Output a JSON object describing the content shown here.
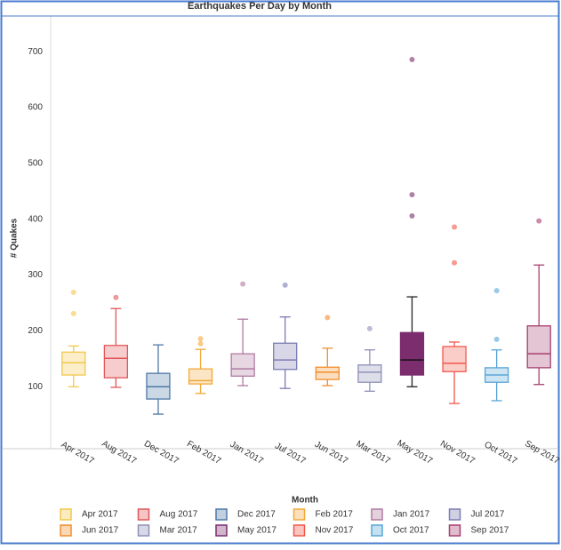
{
  "chart_data": {
    "type": "box",
    "title": "Earthquakes Per Day by Month",
    "y_label": "# Quakes",
    "x_label": "Month",
    "ylim": [
      -11,
      764
    ],
    "yticks": [
      100,
      200,
      300,
      400,
      500,
      600,
      700
    ],
    "grid": false,
    "highlighted": "May 2017",
    "categories": [
      "Apr 2017",
      "Aug 2017",
      "Dec 2017",
      "Feb 2017",
      "Jan 2017",
      "Jul 2017",
      "Jun 2017",
      "Mar 2017",
      "May 2017",
      "Nov 2017",
      "Oct 2017",
      "Sep 2017"
    ],
    "series": [
      {
        "name": "Apr 2017",
        "color": "#f1c84b",
        "whisker_low": 100,
        "q1": 121,
        "median": 143,
        "q3": 162,
        "whisker_high": 173,
        "outliers": [
          269,
          231
        ]
      },
      {
        "name": "Aug 2017",
        "color": "#e15759",
        "whisker_low": 99,
        "q1": 116,
        "median": 151,
        "q3": 174,
        "whisker_high": 240,
        "outliers": [
          260
        ]
      },
      {
        "name": "Dec 2017",
        "color": "#4e79a7",
        "whisker_low": 51,
        "q1": 78,
        "median": 100,
        "q3": 124,
        "whisker_high": 175,
        "outliers": []
      },
      {
        "name": "Feb 2017",
        "color": "#f2a93b",
        "whisker_low": 88,
        "q1": 105,
        "median": 111,
        "q3": 132,
        "whisker_high": 167,
        "outliers": [
          186,
          177
        ]
      },
      {
        "name": "Jan 2017",
        "color": "#b07aa1",
        "whisker_low": 102,
        "q1": 119,
        "median": 132,
        "q3": 159,
        "whisker_high": 221,
        "outliers": [
          284
        ]
      },
      {
        "name": "Jul 2017",
        "color": "#7c7bb3",
        "whisker_low": 97,
        "q1": 131,
        "median": 148,
        "q3": 178,
        "whisker_high": 225,
        "outliers": [
          282
        ]
      },
      {
        "name": "Jun 2017",
        "color": "#f28e2b",
        "whisker_low": 102,
        "q1": 113,
        "median": 126,
        "q3": 135,
        "whisker_high": 169,
        "outliers": [
          224
        ]
      },
      {
        "name": "Mar 2017",
        "color": "#8f91b8",
        "whisker_low": 92,
        "q1": 108,
        "median": 126,
        "q3": 139,
        "whisker_high": 166,
        "outliers": [
          204
        ]
      },
      {
        "name": "May 2017",
        "color": "#7b2d6e",
        "whisker_low": 100,
        "q1": 121,
        "median": 148,
        "q3": 197,
        "whisker_high": 261,
        "outliers": [
          686,
          444,
          406
        ]
      },
      {
        "name": "Nov 2017",
        "color": "#f1584a",
        "whisker_low": 70,
        "q1": 127,
        "median": 142,
        "q3": 172,
        "whisker_high": 180,
        "outliers": [
          386,
          322
        ]
      },
      {
        "name": "Oct 2017",
        "color": "#59a5d8",
        "whisker_low": 75,
        "q1": 108,
        "median": 121,
        "q3": 134,
        "whisker_high": 166,
        "outliers": [
          272,
          185
        ]
      },
      {
        "name": "Sep 2017",
        "color": "#a63f6f",
        "whisker_low": 104,
        "q1": 134,
        "median": 159,
        "q3": 209,
        "whisker_high": 318,
        "outliers": [
          397
        ]
      }
    ]
  }
}
